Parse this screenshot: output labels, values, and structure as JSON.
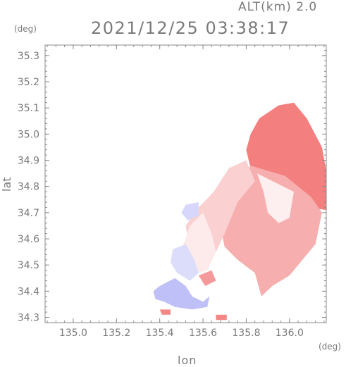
{
  "header": {
    "altitude_label": "ALT(km) 2.0",
    "timestamp": "2021/12/25 03:38:17"
  },
  "chart_data": {
    "type": "heatmap",
    "title": "2021/12/25 03:38:17",
    "xlabel": "lon",
    "ylabel": "lat",
    "x_unit": "(deg)",
    "y_unit": "(deg)",
    "xlim": [
      134.87,
      136.17
    ],
    "ylim": [
      34.28,
      35.34
    ],
    "x_ticks": [
      135.0,
      135.2,
      135.4,
      135.6,
      135.8,
      136.0
    ],
    "x_tick_labels": [
      "135.0",
      "135.2",
      "135.4",
      "135.6",
      "135.8",
      "136.0"
    ],
    "y_ticks": [
      34.3,
      34.4,
      34.5,
      34.6,
      34.7,
      34.8,
      34.9,
      35.0,
      35.1,
      35.2,
      35.3
    ],
    "y_tick_labels": [
      "34.3",
      "34.4",
      "34.5",
      "34.6",
      "34.7",
      "34.8",
      "34.9",
      "35.0",
      "35.1",
      "35.2",
      "35.3"
    ],
    "grid": false,
    "colors": {
      "positive": "#f27878",
      "negative": "#8a8cf0",
      "frame": "#8a8a8a"
    },
    "regions": [
      {
        "sign": "positive",
        "intensity": 0.95,
        "points": [
          [
            135.86,
            35.06
          ],
          [
            135.95,
            35.11
          ],
          [
            136.02,
            35.12
          ],
          [
            136.08,
            35.06
          ],
          [
            136.15,
            34.95
          ],
          [
            136.17,
            34.86
          ],
          [
            136.17,
            34.71
          ],
          [
            136.1,
            34.72
          ],
          [
            136.04,
            34.79
          ],
          [
            135.98,
            34.82
          ],
          [
            135.92,
            34.82
          ],
          [
            135.85,
            34.84
          ],
          [
            135.82,
            34.87
          ],
          [
            135.8,
            34.94
          ],
          [
            135.82,
            35.0
          ]
        ]
      },
      {
        "sign": "positive",
        "intensity": 0.6,
        "points": [
          [
            135.82,
            34.88
          ],
          [
            135.98,
            34.84
          ],
          [
            136.1,
            34.76
          ],
          [
            136.15,
            34.7
          ],
          [
            136.12,
            34.58
          ],
          [
            136.07,
            34.53
          ],
          [
            136.0,
            34.46
          ],
          [
            135.92,
            34.42
          ],
          [
            135.87,
            34.38
          ],
          [
            135.84,
            34.47
          ],
          [
            135.76,
            34.52
          ],
          [
            135.7,
            34.57
          ],
          [
            135.68,
            34.65
          ],
          [
            135.72,
            34.75
          ],
          [
            135.78,
            34.83
          ]
        ]
      },
      {
        "sign": "positive",
        "intensity": 0.35,
        "points": [
          [
            135.72,
            34.87
          ],
          [
            135.8,
            34.9
          ],
          [
            135.84,
            34.82
          ],
          [
            135.76,
            34.74
          ],
          [
            135.7,
            34.62
          ],
          [
            135.66,
            34.55
          ],
          [
            135.6,
            34.5
          ],
          [
            135.54,
            34.55
          ],
          [
            135.52,
            34.65
          ],
          [
            135.58,
            34.72
          ],
          [
            135.65,
            34.78
          ]
        ]
      },
      {
        "sign": "positive",
        "intensity": 0.15,
        "points": [
          [
            135.54,
            34.65
          ],
          [
            135.6,
            34.7
          ],
          [
            135.64,
            34.62
          ],
          [
            135.66,
            34.55
          ],
          [
            135.62,
            34.48
          ],
          [
            135.57,
            34.47
          ],
          [
            135.53,
            34.52
          ],
          [
            135.51,
            34.58
          ]
        ]
      },
      {
        "sign": "negative",
        "intensity": 0.55,
        "points": [
          [
            135.4,
            34.42
          ],
          [
            135.47,
            34.45
          ],
          [
            135.52,
            34.42
          ],
          [
            135.55,
            34.38
          ],
          [
            135.6,
            34.36
          ],
          [
            135.63,
            34.38
          ],
          [
            135.62,
            34.34
          ],
          [
            135.55,
            34.33
          ],
          [
            135.47,
            34.34
          ],
          [
            135.42,
            34.36
          ],
          [
            135.38,
            34.37
          ],
          [
            135.37,
            34.4
          ]
        ]
      },
      {
        "sign": "negative",
        "intensity": 0.3,
        "points": [
          [
            135.46,
            34.56
          ],
          [
            135.52,
            34.58
          ],
          [
            135.56,
            34.52
          ],
          [
            135.58,
            34.47
          ],
          [
            135.54,
            34.44
          ],
          [
            135.48,
            34.47
          ],
          [
            135.45,
            34.51
          ]
        ]
      },
      {
        "sign": "negative",
        "intensity": 0.35,
        "points": [
          [
            135.52,
            34.73
          ],
          [
            135.58,
            34.74
          ],
          [
            135.58,
            34.69
          ],
          [
            135.53,
            34.67
          ],
          [
            135.5,
            34.7
          ]
        ]
      },
      {
        "sign": "positive",
        "intensity": 0.9,
        "points": [
          [
            135.4,
            34.33
          ],
          [
            135.45,
            34.33
          ],
          [
            135.45,
            34.31
          ],
          [
            135.41,
            34.31
          ]
        ]
      },
      {
        "sign": "positive",
        "intensity": 0.9,
        "points": [
          [
            135.66,
            34.31
          ],
          [
            135.71,
            34.31
          ],
          [
            135.71,
            34.29
          ],
          [
            135.66,
            34.29
          ]
        ]
      },
      {
        "sign": "positive",
        "intensity": 0.75,
        "points": [
          [
            135.58,
            34.46
          ],
          [
            135.64,
            34.48
          ],
          [
            135.66,
            34.44
          ],
          [
            135.61,
            34.42
          ]
        ]
      },
      {
        "sign": "positive",
        "intensity": 0.12,
        "points": [
          [
            135.85,
            34.85
          ],
          [
            136.02,
            34.78
          ],
          [
            136.0,
            34.68
          ],
          [
            135.95,
            34.66
          ],
          [
            135.9,
            34.7
          ],
          [
            135.88,
            34.78
          ]
        ]
      }
    ]
  }
}
